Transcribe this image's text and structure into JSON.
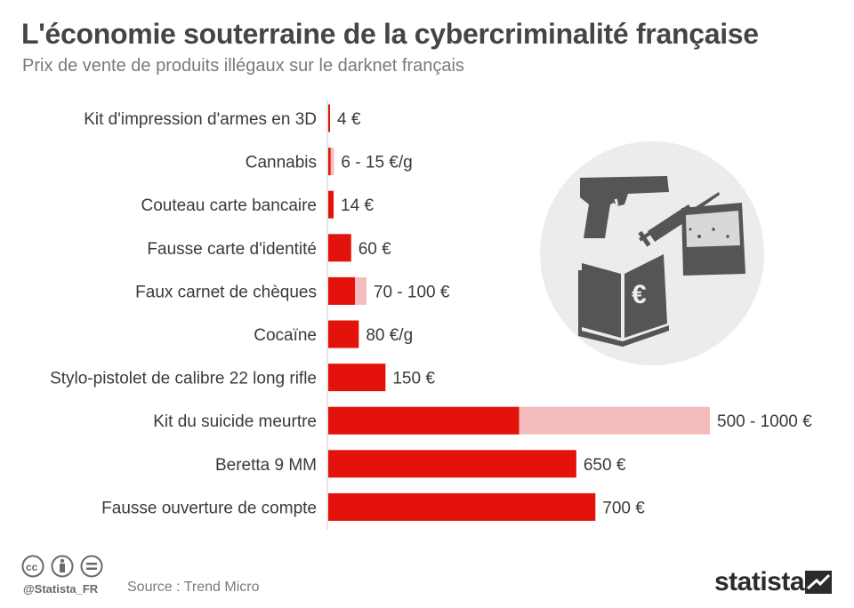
{
  "header": {
    "title": "L'économie souterraine de la cybercriminalité française",
    "subtitle": "Prix de vente de produits illégaux sur le darknet français"
  },
  "footer": {
    "handle": "@Statista_FR",
    "source": "Source : Trend Micro",
    "brand": "statista"
  },
  "colors": {
    "bar": "#e3120b",
    "bar_range": "#f4bcbc",
    "axis": "#cccccc",
    "illustration_circle": "#ececec",
    "icon": "#555555"
  },
  "chart_data": {
    "type": "bar",
    "orientation": "horizontal",
    "categories": [
      "Kit d'impression d'armes en 3D",
      "Cannabis",
      "Couteau carte bancaire",
      "Fausse carte d'identité",
      "Faux carnet de chèques",
      "Cocaïne",
      "Stylo-pistolet de calibre 22 long rifle",
      "Kit du suicide meurtre",
      "Beretta 9 MM",
      "Fausse ouverture de compte"
    ],
    "values_low": [
      4,
      6,
      14,
      60,
      70,
      80,
      150,
      500,
      650,
      700
    ],
    "values_high": [
      4,
      15,
      14,
      60,
      100,
      80,
      150,
      1000,
      650,
      700
    ],
    "labels": [
      "4 €",
      "6 - 15 €/g",
      "14 €",
      "60 €",
      "70 - 100 €",
      "80 €/g",
      "150 €",
      "500 - 1000 €",
      "650 €",
      "700 €"
    ],
    "xlim": [
      0,
      1000
    ],
    "grid": false,
    "legend": "none"
  },
  "illustration": {
    "icons": [
      "pistol-icon",
      "syringe-icon",
      "powder-bag-icon",
      "euro-passbook-icon"
    ]
  }
}
